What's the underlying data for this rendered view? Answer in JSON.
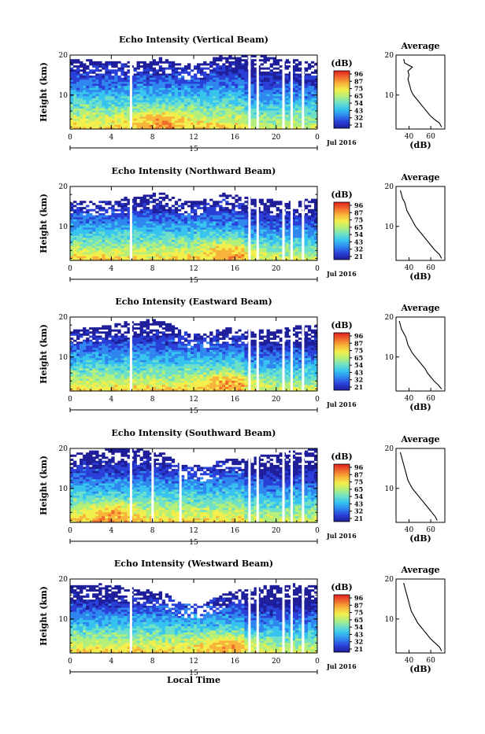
{
  "colors": {
    "scale": [
      "#1e1e9a",
      "#2a3fd8",
      "#2f86ef",
      "#37c3ef",
      "#6fe0c8",
      "#b4ef7a",
      "#f2ef4c",
      "#f8b43a",
      "#f06a2c",
      "#e21e1e"
    ],
    "axis": "#000000"
  },
  "chart_data": [
    {
      "type": "heatmap",
      "title": "Echo Intensity (Vertical Beam)",
      "ylabel": "Height (km)",
      "xlabel": "",
      "x_ticks": [
        "0",
        "4",
        "8",
        "12",
        "16",
        "20",
        "0"
      ],
      "y_ticks": [
        "10",
        "20"
      ],
      "date_label": "15",
      "month_label": "Jul 2016",
      "xlim": [
        0,
        24
      ],
      "ylim": [
        1.5,
        20
      ],
      "colorbar": {
        "unit": "(dB)",
        "ticks": [
          "96",
          "87",
          "75",
          "65",
          "54",
          "43",
          "32",
          "21"
        ]
      },
      "gaps_hours": [
        5.8,
        17.3,
        18.1,
        20.6,
        21.4,
        22.5
      ],
      "top_km": 19.3,
      "peak_hour": 9.0,
      "average_profile": {
        "title": "Average",
        "xlabel": "(dB)",
        "x_ticks": [
          "40",
          "60"
        ],
        "y_ticks": [
          "10",
          "20"
        ],
        "xlim": [
          28,
          73
        ],
        "height_km": [
          2,
          3,
          4,
          5,
          6,
          7,
          8,
          9,
          10,
          11,
          12,
          13,
          14,
          15,
          16,
          17,
          18,
          19
        ],
        "db": [
          70,
          68,
          63,
          59,
          56,
          53,
          50,
          47,
          44,
          42,
          41,
          40,
          39,
          40,
          39,
          43,
          36,
          35
        ]
      }
    },
    {
      "type": "heatmap",
      "title": "Echo Intensity (Northward Beam)",
      "ylabel": "Height (km)",
      "xlabel": "",
      "x_ticks": [
        "0",
        "4",
        "8",
        "12",
        "16",
        "20",
        "0"
      ],
      "y_ticks": [
        "10",
        "20"
      ],
      "date_label": "15",
      "month_label": "Jul 2016",
      "xlim": [
        0,
        24
      ],
      "ylim": [
        1.5,
        20
      ],
      "colorbar": {
        "unit": "(dB)",
        "ticks": [
          "96",
          "87",
          "75",
          "65",
          "54",
          "43",
          "32",
          "21"
        ]
      },
      "gaps_hours": [
        5.8,
        17.3,
        18.1,
        20.6,
        21.4,
        22.5
      ],
      "top_km": 17.5,
      "peak_hour": 15.5,
      "average_profile": {
        "title": "Average",
        "xlabel": "(dB)",
        "x_ticks": [
          "40",
          "60"
        ],
        "y_ticks": [
          "10",
          "20"
        ],
        "xlim": [
          28,
          73
        ],
        "height_km": [
          2,
          3,
          4,
          5,
          6,
          7,
          8,
          9,
          10,
          11,
          12,
          13,
          14,
          15,
          16,
          17,
          18,
          19
        ],
        "db": [
          70,
          68,
          64,
          61,
          58,
          55,
          52,
          49,
          46,
          44,
          42,
          40,
          38,
          37,
          36,
          34,
          33,
          32
        ]
      }
    },
    {
      "type": "heatmap",
      "title": "Echo Intensity (Eastward Beam)",
      "ylabel": "Height (km)",
      "xlabel": "",
      "x_ticks": [
        "0",
        "4",
        "8",
        "12",
        "16",
        "20",
        "0"
      ],
      "y_ticks": [
        "10",
        "20"
      ],
      "date_label": "15",
      "month_label": "Jul 2016",
      "xlim": [
        0,
        24
      ],
      "ylim": [
        1.5,
        20
      ],
      "colorbar": {
        "unit": "(dB)",
        "ticks": [
          "96",
          "87",
          "75",
          "65",
          "54",
          "43",
          "32",
          "21"
        ]
      },
      "gaps_hours": [
        5.8,
        17.3,
        18.1,
        20.6,
        21.4,
        22.5
      ],
      "top_km": 17.8,
      "peak_hour": 15.5,
      "average_profile": {
        "title": "Average",
        "xlabel": "(dB)",
        "x_ticks": [
          "40",
          "60"
        ],
        "y_ticks": [
          "10",
          "20"
        ],
        "xlim": [
          28,
          73
        ],
        "height_km": [
          2,
          3,
          4,
          5,
          6,
          7,
          8,
          9,
          10,
          11,
          12,
          13,
          14,
          15,
          16,
          17,
          18,
          19
        ],
        "db": [
          70,
          67,
          63,
          60,
          57,
          55,
          52,
          49,
          46,
          43,
          41,
          39,
          38,
          37,
          35,
          33,
          32,
          31
        ]
      }
    },
    {
      "type": "heatmap",
      "title": "Echo Intensity (Southward Beam)",
      "ylabel": "Height (km)",
      "xlabel": "",
      "x_ticks": [
        "0",
        "4",
        "8",
        "12",
        "16",
        "20",
        "0"
      ],
      "y_ticks": [
        "10",
        "20"
      ],
      "date_label": "15",
      "month_label": "Jul 2016",
      "xlim": [
        0,
        24
      ],
      "ylim": [
        1.5,
        20
      ],
      "colorbar": {
        "unit": "(dB)",
        "ticks": [
          "96",
          "87",
          "75",
          "65",
          "54",
          "43",
          "32",
          "21"
        ]
      },
      "gaps_hours": [
        5.8,
        7.9,
        10.6,
        17.3,
        18.1,
        20.6,
        21.4,
        22.5
      ],
      "top_km": 18.5,
      "peak_hour": 4.0,
      "average_profile": {
        "title": "Average",
        "xlabel": "(dB)",
        "x_ticks": [
          "40",
          "60"
        ],
        "y_ticks": [
          "10",
          "20"
        ],
        "xlim": [
          28,
          73
        ],
        "height_km": [
          2,
          3,
          4,
          5,
          6,
          7,
          8,
          9,
          10,
          11,
          12,
          13,
          14,
          15,
          16,
          17,
          18,
          19
        ],
        "db": [
          66,
          64,
          61,
          58,
          55,
          52,
          49,
          46,
          43,
          41,
          39,
          38,
          37,
          36,
          35,
          34,
          33,
          32
        ]
      }
    },
    {
      "type": "heatmap",
      "title": "Echo Intensity (Westward Beam)",
      "ylabel": "Height (km)",
      "xlabel": "Local Time",
      "x_ticks": [
        "0",
        "4",
        "8",
        "12",
        "16",
        "20",
        "0"
      ],
      "y_ticks": [
        "10",
        "20"
      ],
      "date_label": "15",
      "month_label": "Jul 2016",
      "xlim": [
        0,
        24
      ],
      "ylim": [
        1.5,
        20
      ],
      "colorbar": {
        "unit": "(dB)",
        "ticks": [
          "96",
          "87",
          "75",
          "65",
          "54",
          "43",
          "32",
          "21"
        ]
      },
      "gaps_hours": [
        5.8,
        17.3,
        18.1,
        20.6,
        21.4,
        22.5
      ],
      "top_km": 17.2,
      "peak_hour": 15.5,
      "average_profile": {
        "title": "Average",
        "xlabel": "(dB)",
        "x_ticks": [
          "40",
          "60"
        ],
        "y_ticks": [
          "10",
          "20"
        ],
        "xlim": [
          28,
          73
        ],
        "height_km": [
          2,
          3,
          4,
          5,
          6,
          7,
          8,
          9,
          10,
          11,
          12,
          13,
          14,
          15,
          16,
          17,
          18,
          19
        ],
        "db": [
          70,
          68,
          64,
          60,
          57,
          54,
          51,
          48,
          46,
          44,
          42,
          41,
          40,
          39,
          38,
          37,
          36,
          35
        ]
      }
    }
  ]
}
